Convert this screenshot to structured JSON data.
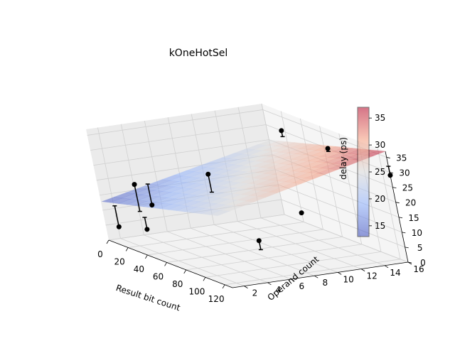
{
  "chart_data": {
    "type": "surface3d",
    "title": "kOneHotSel",
    "xlabel": "Result bit count",
    "ylabel": "Operand count",
    "zlabel": "delay (ps)",
    "x_ticks": [
      0,
      20,
      40,
      60,
      80,
      100,
      120
    ],
    "y_ticks": [
      2,
      4,
      6,
      8,
      10,
      12,
      14,
      16
    ],
    "z_ticks": [
      0,
      5,
      10,
      15,
      20,
      25,
      30,
      35
    ],
    "x_range": [
      0,
      128
    ],
    "y_range": [
      1,
      16
    ],
    "z_range": [
      0,
      37
    ],
    "colorbar": {
      "ticks": [
        15,
        20,
        25,
        30,
        35
      ],
      "range": [
        13,
        37
      ],
      "colormap": "coolwarm",
      "low_color": "#3b4cc0",
      "high_color": "#b40426"
    },
    "surface": {
      "x_corners": [
        1,
        128
      ],
      "y_corners": [
        1,
        16
      ],
      "z_corners": [
        [
          13,
          24
        ],
        [
          25,
          37
        ]
      ]
    },
    "points": [
      {
        "x": 1,
        "y": 2,
        "z": 4,
        "z_lo": 4,
        "z_hi": 11
      },
      {
        "x": 1,
        "y": 4,
        "z": 17,
        "z_lo": 8,
        "z_hi": 17
      },
      {
        "x": 32,
        "y": 2,
        "z": 7,
        "z_lo": 7,
        "z_hi": 11
      },
      {
        "x": 16,
        "y": 4,
        "z": 12,
        "z_lo": 12,
        "z_hi": 19
      },
      {
        "x": 32,
        "y": 8,
        "z": 22,
        "z_lo": 16,
        "z_hi": 22
      },
      {
        "x": 16,
        "y": 16,
        "z": 30,
        "z_lo": 28,
        "z_hi": 30
      },
      {
        "x": 64,
        "y": 16,
        "z": 30,
        "z_lo": 29,
        "z_hi": 30
      },
      {
        "x": 128,
        "y": 16,
        "z": 29,
        "z_lo": 29,
        "z_hi": 32
      },
      {
        "x": 128,
        "y": 4,
        "z": 14,
        "z_lo": 11,
        "z_hi": 14
      },
      {
        "x": 128,
        "y": 8,
        "z": 21,
        "z_lo": 21,
        "z_hi": 21
      }
    ]
  }
}
